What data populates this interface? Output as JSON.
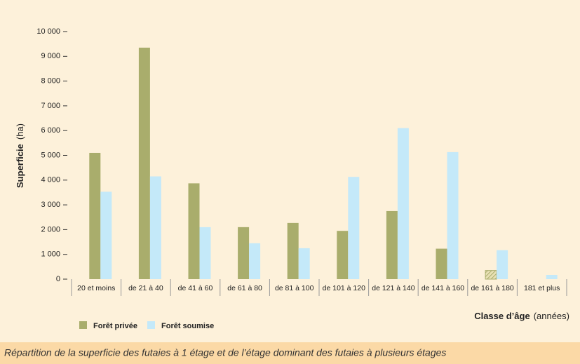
{
  "chart_data": {
    "type": "bar",
    "y_label": "Superficie",
    "y_unit": "(ha)",
    "x_label": "Classe d’âge",
    "x_unit": "(années)",
    "caption": "Répartition de la superficie des futaies à 1 étage et de l’étage dominant des futaies à plusieurs étages",
    "categories": [
      "20 et moins",
      "de 21 à 40",
      "de 41 à 60",
      "de 61 à 80",
      "de 81 à 100",
      "de 101 à 120",
      "de 121 à 140",
      "de 141 à 160",
      "de 161 à 180",
      "181 et plus"
    ],
    "series": [
      {
        "name": "Forêt privée",
        "color": "#a9ad6c",
        "hatched_categories": [
          8
        ],
        "values": [
          5100,
          9350,
          3870,
          2100,
          2270,
          1950,
          2750,
          1230,
          350,
          null
        ]
      },
      {
        "name": "Forêt soumise",
        "color": "#c4e9f9",
        "values": [
          3530,
          4150,
          2100,
          1450,
          1250,
          4130,
          6100,
          5130,
          1170,
          170
        ]
      }
    ],
    "ylim": [
      0,
      10000
    ],
    "yticks": [
      0,
      {
        "value": 1000,
        "label": "1 000"
      },
      {
        "value": 2000,
        "label": "2 000"
      },
      {
        "value": 3000,
        "label": "3 000"
      },
      {
        "value": 4000,
        "label": "4 000"
      },
      {
        "value": 5000,
        "label": "5 000"
      },
      {
        "value": 6000,
        "label": "6 000"
      },
      {
        "value": 7000,
        "label": "7 000"
      },
      {
        "value": 8000,
        "label": "8 000"
      },
      {
        "value": 9000,
        "label": "9 000"
      },
      {
        "value": 10000,
        "label": "10 000"
      }
    ]
  }
}
